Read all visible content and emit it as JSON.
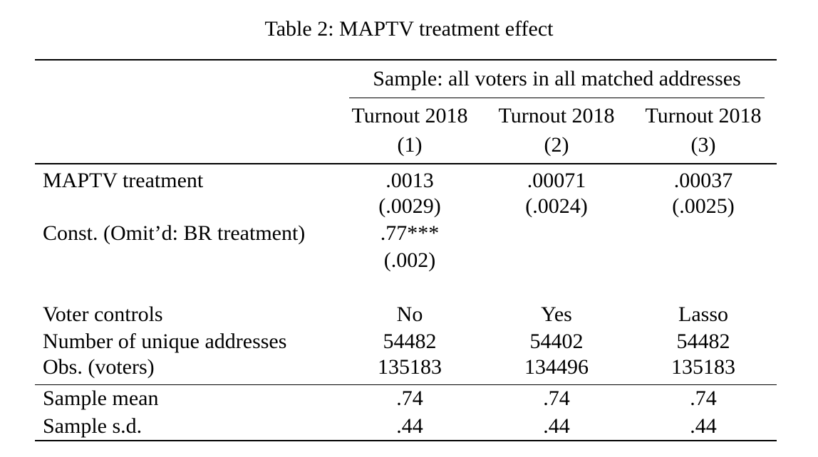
{
  "title": "Table 2: MAPTV treatment effect",
  "colors": {
    "text": "#000000",
    "background": "#ffffff",
    "rule": "#000000"
  },
  "table": {
    "sample_header": "Sample: all voters in all matched addresses",
    "columns": [
      {
        "label": "Turnout 2018",
        "number": "(1)"
      },
      {
        "label": "Turnout 2018",
        "number": "(2)"
      },
      {
        "label": "Turnout 2018",
        "number": "(3)"
      }
    ],
    "coef_rows": [
      {
        "label": "MAPTV treatment",
        "values": [
          ".0013",
          ".00071",
          ".00037"
        ]
      },
      {
        "label": "",
        "values": [
          "(.0029)",
          "(.0024)",
          "(.0025)"
        ]
      },
      {
        "label": "Const. (Omit’d: BR treatment)",
        "values": [
          ".77***",
          "",
          ""
        ]
      },
      {
        "label": "",
        "values": [
          "(.002)",
          "",
          ""
        ]
      }
    ],
    "info_rows": [
      {
        "label": "Voter controls",
        "values": [
          "No",
          "Yes",
          "Lasso"
        ]
      },
      {
        "label": "Number of unique addresses",
        "values": [
          "54482",
          "54402",
          "54482"
        ]
      },
      {
        "label": "Obs. (voters)",
        "values": [
          "135183",
          "134496",
          "135183"
        ]
      }
    ],
    "summary_rows": [
      {
        "label": "Sample mean",
        "values": [
          ".74",
          ".74",
          ".74"
        ]
      },
      {
        "label": "Sample s.d.",
        "values": [
          ".44",
          ".44",
          ".44"
        ]
      }
    ]
  }
}
